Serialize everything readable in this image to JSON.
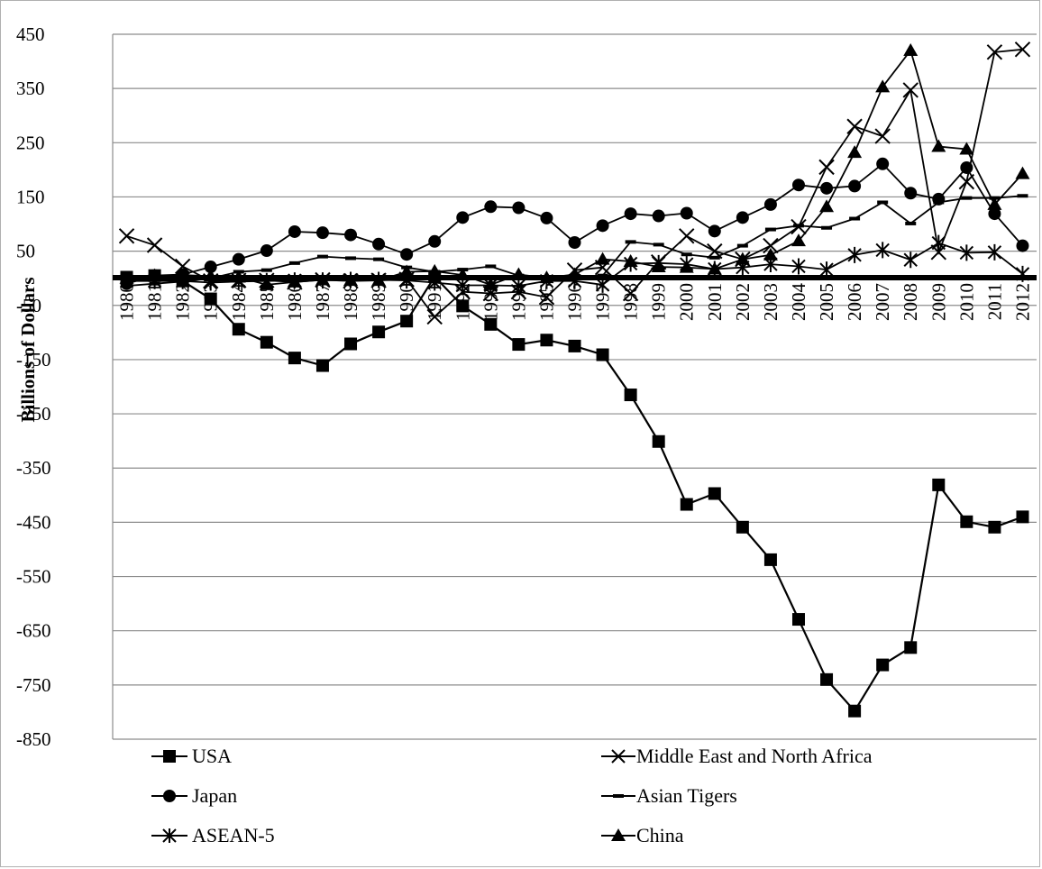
{
  "chart_data": {
    "type": "line",
    "title": "",
    "xlabel": "",
    "ylabel": "Billions of Dollars",
    "ylim": [
      -850,
      450
    ],
    "yticks": [
      450,
      350,
      250,
      150,
      50,
      -50,
      -150,
      -250,
      -350,
      -450,
      -550,
      -650,
      -750,
      -850
    ],
    "grid": true,
    "legend_position": "bottom",
    "x": [
      "1980",
      "1981",
      "1982",
      "1983",
      "1984",
      "1985",
      "1986",
      "1987",
      "1988",
      "1989",
      "1990",
      "1991",
      "1992",
      "1993",
      "1994",
      "1995",
      "1996",
      "1997",
      "1998",
      "1999",
      "2000",
      "2001",
      "2002",
      "2003",
      "2004",
      "2005",
      "2006",
      "2007",
      "2008",
      "2009",
      "2010",
      "2011",
      "2012"
    ],
    "series": [
      {
        "name": "USA",
        "marker": "square",
        "values": [
          2,
          5,
          -5,
          -38,
          -94,
          -118,
          -147,
          -161,
          -121,
          -99,
          -79,
          3,
          -51,
          -85,
          -122,
          -114,
          -125,
          -141,
          -215,
          -301,
          -417,
          -397,
          -459,
          -519,
          -629,
          -740,
          -798,
          -713,
          -681,
          -381,
          -449,
          -459,
          -440
        ]
      },
      {
        "name": "Middle East and North Africa",
        "marker": "x",
        "values": [
          78,
          61,
          22,
          -5,
          -4,
          -4,
          -7,
          -3,
          -5,
          -4,
          -2,
          -71,
          -25,
          -28,
          -25,
          -35,
          15,
          20,
          -28,
          30,
          78,
          50,
          35,
          60,
          95,
          205,
          280,
          262,
          347,
          48,
          178,
          417,
          422
        ]
      },
      {
        "name": "Japan",
        "marker": "circle",
        "values": [
          -10,
          5,
          7,
          21,
          35,
          51,
          86,
          84,
          80,
          63,
          44,
          68,
          112,
          132,
          130,
          111,
          66,
          97,
          119,
          115,
          120,
          87,
          112,
          136,
          172,
          166,
          170,
          211,
          157,
          146,
          204,
          119,
          60
        ]
      },
      {
        "name": "Asian Tigers",
        "marker": "dash",
        "values": [
          -14,
          -10,
          -6,
          0,
          12,
          15,
          28,
          40,
          37,
          35,
          20,
          12,
          16,
          22,
          5,
          -3,
          0,
          5,
          67,
          62,
          44,
          38,
          60,
          90,
          97,
          93,
          110,
          140,
          101,
          140,
          148,
          148,
          152
        ]
      },
      {
        "name": "ASEAN-5",
        "marker": "star",
        "values": [
          -5,
          -5,
          -5,
          -8,
          -6,
          -5,
          -4,
          -4,
          -3,
          -3,
          -4,
          -8,
          -13,
          -13,
          -14,
          -5,
          -5,
          -12,
          27,
          28,
          26,
          17,
          20,
          26,
          22,
          16,
          43,
          52,
          34,
          65,
          47,
          48,
          8
        ]
      },
      {
        "name": "China",
        "marker": "triangle",
        "values": [
          0,
          5,
          6,
          4,
          2,
          -12,
          -7,
          -3,
          -4,
          -4,
          12,
          13,
          6,
          -12,
          7,
          1,
          7,
          35,
          31,
          21,
          20,
          17,
          35,
          43,
          69,
          132,
          232,
          353,
          420,
          243,
          238,
          136,
          193
        ]
      }
    ]
  },
  "legend": {
    "items": [
      {
        "label": "USA"
      },
      {
        "label": "Middle East and North Africa"
      },
      {
        "label": "Japan"
      },
      {
        "label": "Asian Tigers"
      },
      {
        "label": "ASEAN-5"
      },
      {
        "label": "China"
      }
    ]
  }
}
